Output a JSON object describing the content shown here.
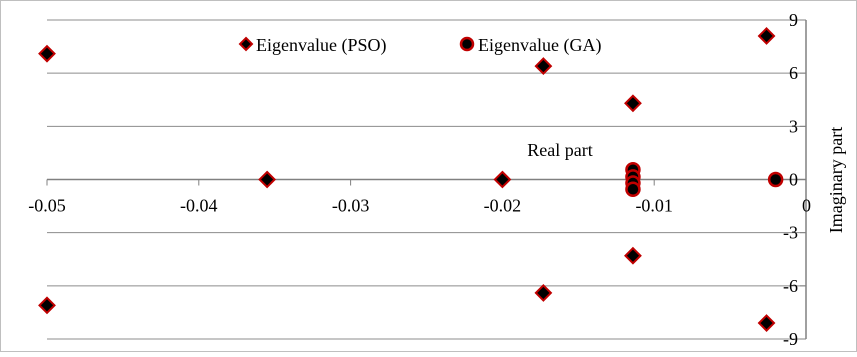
{
  "chart_data": {
    "type": "scatter",
    "title": "",
    "xlabel": "Real  part",
    "ylabel": "Imaginary part",
    "xlim": [
      -0.05,
      0
    ],
    "ylim": [
      -9,
      9
    ],
    "grid": "horizontal",
    "legend_position": "top",
    "x_ticks": [
      {
        "value": -0.05,
        "label": "-0.05"
      },
      {
        "value": -0.04,
        "label": "-0.04"
      },
      {
        "value": -0.03,
        "label": "-0.03"
      },
      {
        "value": -0.02,
        "label": "-0.02"
      },
      {
        "value": -0.01,
        "label": "-0.01"
      },
      {
        "value": 0,
        "label": "0"
      }
    ],
    "y_ticks": [
      {
        "value": 9,
        "label": "9"
      },
      {
        "value": 6,
        "label": "6"
      },
      {
        "value": 3,
        "label": "3"
      },
      {
        "value": 0,
        "label": "0"
      },
      {
        "value": -3,
        "label": "-3"
      },
      {
        "value": -6,
        "label": "-6"
      },
      {
        "value": -9,
        "label": "-9"
      }
    ],
    "series": [
      {
        "name": "Eigenvalue (PSO)",
        "marker": "diamond",
        "fill_color": "#000000",
        "edge_color": "#c00000",
        "points": [
          {
            "x": -0.05,
            "y": 7.1
          },
          {
            "x": -0.05,
            "y": -7.1
          },
          {
            "x": -0.0355,
            "y": 0
          },
          {
            "x": -0.02,
            "y": 0
          },
          {
            "x": -0.0173,
            "y": 6.4
          },
          {
            "x": -0.0173,
            "y": -6.4
          },
          {
            "x": -0.0114,
            "y": 4.3
          },
          {
            "x": -0.0114,
            "y": -4.3
          },
          {
            "x": -0.0026,
            "y": 8.1
          },
          {
            "x": -0.0026,
            "y": -8.1
          }
        ]
      },
      {
        "name": "Eigenvalue (GA)",
        "marker": "circle",
        "fill_color": "#000000",
        "edge_color": "#c00000",
        "points": [
          {
            "x": -0.0114,
            "y": 0.55
          },
          {
            "x": -0.0114,
            "y": 0.15
          },
          {
            "x": -0.0114,
            "y": -0.2
          },
          {
            "x": -0.0114,
            "y": -0.55
          },
          {
            "x": -0.002,
            "y": 0
          }
        ]
      }
    ]
  }
}
